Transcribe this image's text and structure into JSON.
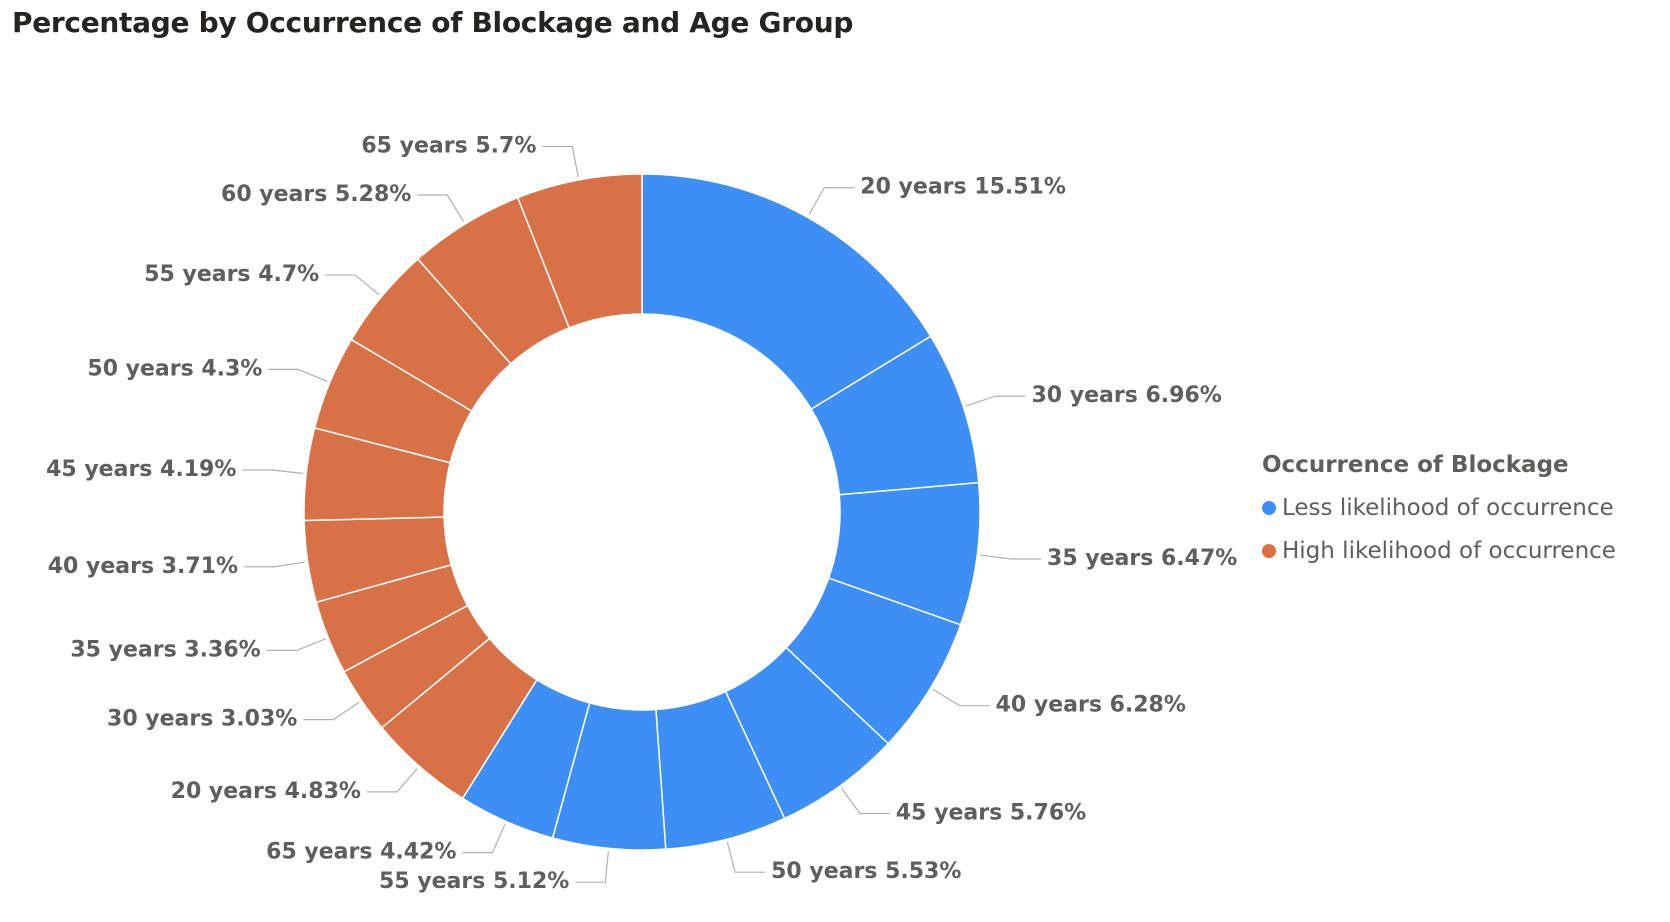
{
  "chart_data": {
    "type": "donut",
    "title": "Percentage by Occurrence of Blockage and Age Group",
    "legend": {
      "title": "Occurrence of Blockage",
      "position": "right",
      "entries": [
        {
          "name": "Less likelihood of occurrence",
          "color": "#3d8ef5"
        },
        {
          "name": "High likelihood of occurrence",
          "color": "#d97146"
        }
      ]
    },
    "slices": [
      {
        "series": "Less likelihood of occurrence",
        "age_group": "20 years",
        "value": 15.51,
        "label": "20 years 15.51%"
      },
      {
        "series": "Less likelihood of occurrence",
        "age_group": "30 years",
        "value": 6.96,
        "label": "30 years 6.96%"
      },
      {
        "series": "Less likelihood of occurrence",
        "age_group": "35 years",
        "value": 6.47,
        "label": "35 years 6.47%"
      },
      {
        "series": "Less likelihood of occurrence",
        "age_group": "40 years",
        "value": 6.28,
        "label": "40 years 6.28%"
      },
      {
        "series": "Less likelihood of occurrence",
        "age_group": "45 years",
        "value": 5.76,
        "label": "45 years 5.76%"
      },
      {
        "series": "Less likelihood of occurrence",
        "age_group": "50 years",
        "value": 5.53,
        "label": "50 years 5.53%"
      },
      {
        "series": "Less likelihood of occurrence",
        "age_group": "55 years",
        "value": 5.12,
        "label": "55 years 5.12%"
      },
      {
        "series": "Less likelihood of occurrence",
        "age_group": "65 years",
        "value": 4.42,
        "label": "65 years 4.42%"
      },
      {
        "series": "High likelihood of occurrence",
        "age_group": "20 years",
        "value": 4.83,
        "label": "20 years 4.83%"
      },
      {
        "series": "High likelihood of occurrence",
        "age_group": "30 years",
        "value": 3.03,
        "label": "30 years 3.03%"
      },
      {
        "series": "High likelihood of occurrence",
        "age_group": "35 years",
        "value": 3.36,
        "label": "35 years 3.36%"
      },
      {
        "series": "High likelihood of occurrence",
        "age_group": "40 years",
        "value": 3.71,
        "label": "40 years 3.71%"
      },
      {
        "series": "High likelihood of occurrence",
        "age_group": "45 years",
        "value": 4.19,
        "label": "45 years 4.19%"
      },
      {
        "series": "High likelihood of occurrence",
        "age_group": "50 years",
        "value": 4.3,
        "label": "50 years 4.3%"
      },
      {
        "series": "High likelihood of occurrence",
        "age_group": "55 years",
        "value": 4.7,
        "label": "55 years 4.7%"
      },
      {
        "series": "High likelihood of occurrence",
        "age_group": "60 years",
        "value": 5.28,
        "label": "60 years 5.28%"
      },
      {
        "series": "High likelihood of occurrence",
        "age_group": "65 years",
        "value": 5.7,
        "label": "65 years 5.7%"
      }
    ]
  }
}
